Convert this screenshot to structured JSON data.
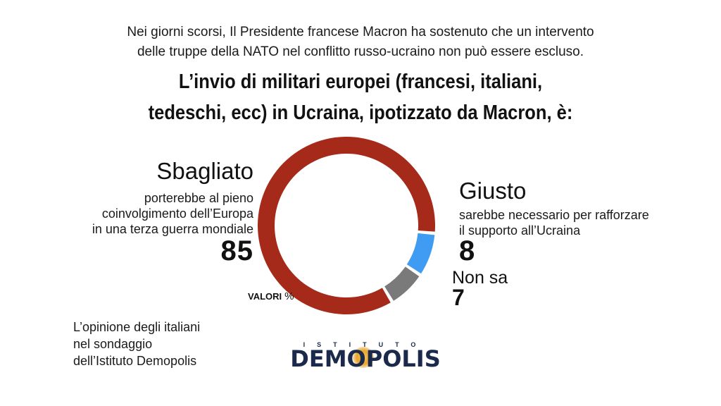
{
  "intro": {
    "line1": "Nei giorni scorsi, Il Presidente francese Macron ha sostenuto che un intervento",
    "line2": "delle truppe della NATO nel conflitto russo-ucraino non può essere escluso."
  },
  "question": {
    "line1": "L’invio di militari europei (francesi, italiani,",
    "line2": "tedeschi, ecc) in Ucraina, ipotizzato da Macron, è:"
  },
  "chart_data": {
    "type": "pie",
    "donut": true,
    "units_label": "VALORI",
    "units_symbol": "%",
    "slices": [
      {
        "label": "Sbagliato",
        "value": 85,
        "value_text": "85",
        "description": [
          "porterebbe al pieno",
          "coinvolgimento dell’Europa",
          "in una terza guerra mondiale"
        ],
        "color": "#a52a1a"
      },
      {
        "label": "Giusto",
        "value": 8,
        "value_text": "8",
        "description": [
          "sarebbe necessario per rafforzare",
          "il supporto all’Ucraina"
        ],
        "color": "#3f9cf2"
      },
      {
        "label": "Non sa",
        "value": 7,
        "value_text": "7",
        "description": [],
        "color": "#7a7a7a"
      }
    ]
  },
  "source": {
    "line1": "L’opinione degli italiani",
    "line2": "nel sondaggio",
    "line3": "dell’Istituto Demopolis"
  },
  "logo": {
    "top": "ISTITUTO",
    "main": "DEMOPOLIS",
    "color": "#1b2a4a",
    "accent": "#e9a52d"
  }
}
